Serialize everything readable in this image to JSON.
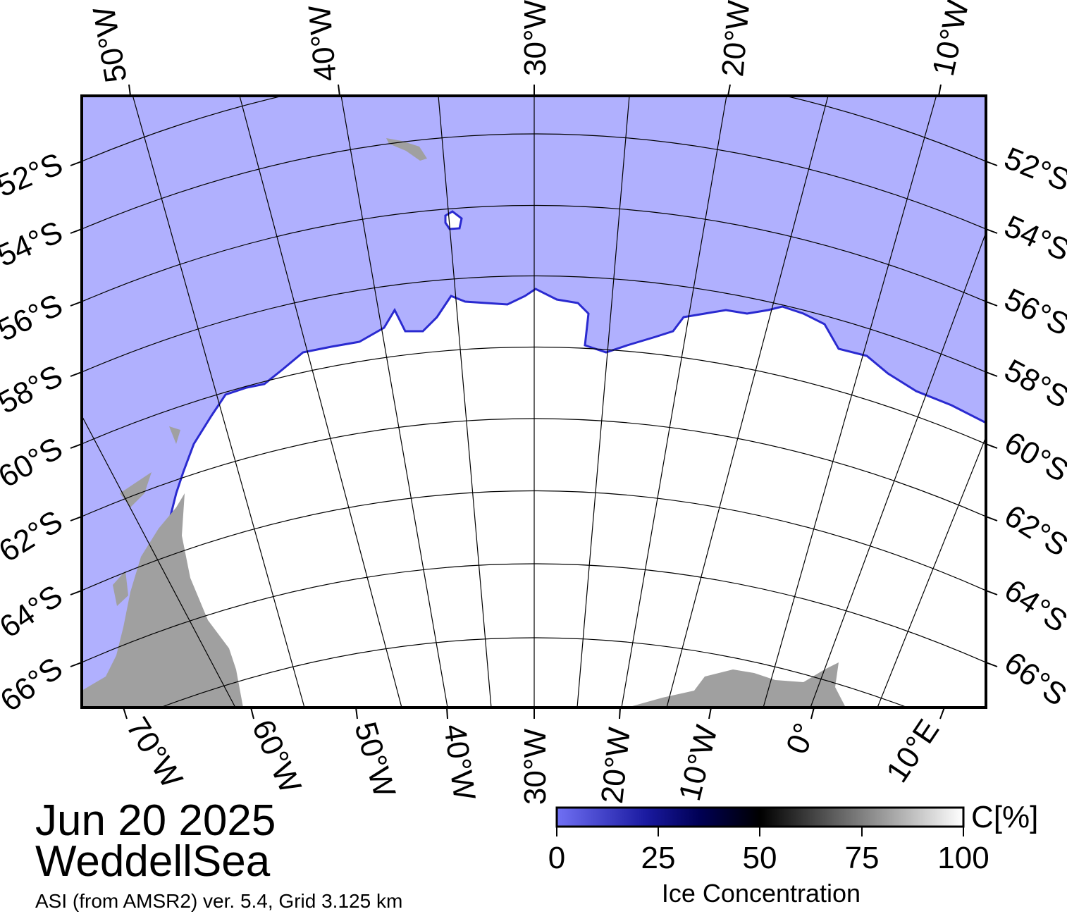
{
  "date": "Jun 20 2025",
  "region": "WeddellSea",
  "source": "ASI (from AMSR2) ver. 5.4,  Grid 3.125 km",
  "colors": {
    "open_water": "#b0b0fe",
    "land": "#a0a0a0",
    "graticule": "#000000",
    "cbar_low": "#7070f4",
    "cbar_mid": "#000000",
    "cbar_high": "#ffffff"
  },
  "map": {
    "top_lon_labels": [
      "50°W",
      "40°W",
      "30°W",
      "20°W",
      "10°W"
    ],
    "bottom_lon_labels": [
      "70°W",
      "60°W",
      "50°W",
      "40°W",
      "30°W",
      "20°W",
      "10°W",
      "0°",
      "10°E"
    ],
    "left_lat_labels": [
      "52°S",
      "54°S",
      "56°S",
      "58°S",
      "60°S",
      "62°S",
      "64°S",
      "66°S"
    ],
    "right_lat_labels": [
      "52°S",
      "54°S",
      "56°S",
      "58°S",
      "60°S",
      "62°S",
      "64°S",
      "66°S"
    ]
  },
  "colorbar": {
    "unit": "C[%]",
    "title": "Ice Concentration",
    "ticks": [
      "0",
      "25",
      "50",
      "75",
      "100"
    ],
    "range": [
      0,
      100
    ]
  }
}
